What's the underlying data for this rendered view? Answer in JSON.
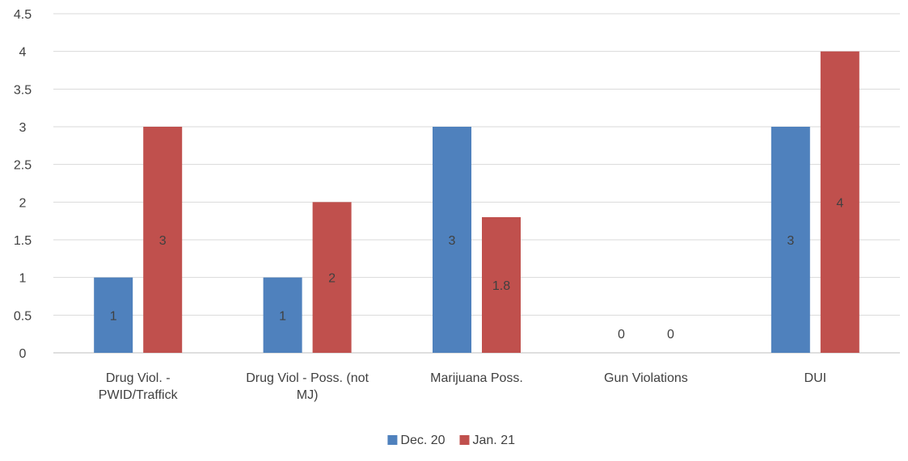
{
  "chart_data": {
    "type": "bar",
    "categories": [
      "Drug Viol. - PWID/Traffick",
      "Drug Viol - Poss. (not MJ)",
      "Marijuana Poss.",
      "Gun Violations",
      "DUI"
    ],
    "category_lines": [
      [
        "Drug Viol. -",
        "PWID/Traffick"
      ],
      [
        "Drug Viol - Poss. (not",
        "MJ)"
      ],
      [
        "Marijuana Poss."
      ],
      [
        "Gun Violations"
      ],
      [
        "DUI"
      ]
    ],
    "series": [
      {
        "name": "Dec. 20",
        "color": "#4f81bd",
        "values": [
          1,
          1,
          3,
          0,
          3
        ]
      },
      {
        "name": "Jan. 21",
        "color": "#c0504d",
        "values": [
          3,
          2,
          1.8,
          0,
          4
        ]
      }
    ],
    "ylim": [
      0,
      4.5
    ],
    "yticks": [
      0,
      0.5,
      1,
      1.5,
      2,
      2.5,
      3,
      3.5,
      4,
      4.5
    ],
    "grid": true,
    "legend_position": "bottom",
    "data_labels": true
  }
}
